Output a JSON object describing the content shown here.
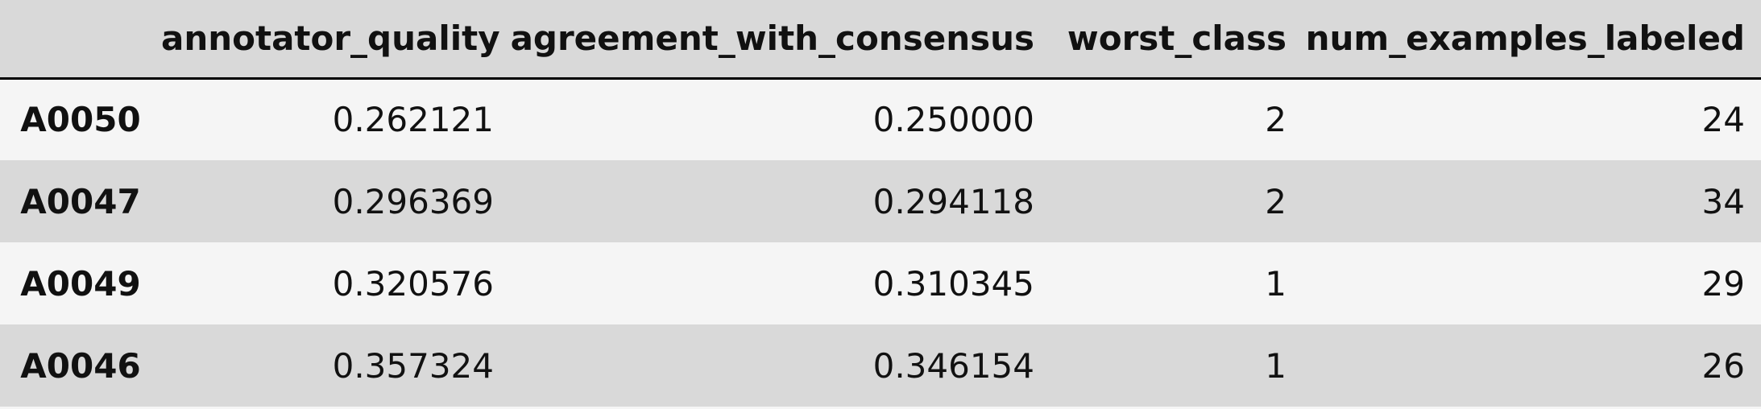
{
  "table": {
    "columns": [
      "annotator_quality",
      "agreement_with_consensus",
      "worst_class",
      "num_examples_labeled"
    ],
    "rows": [
      [
        "A0050",
        "0.262121",
        "0.250000",
        "2",
        "24"
      ],
      [
        "A0047",
        "0.296369",
        "0.294118",
        "2",
        "34"
      ],
      [
        "A0049",
        "0.320576",
        "0.310345",
        "1",
        "29"
      ],
      [
        "A0046",
        "0.357324",
        "0.346154",
        "1",
        "26"
      ]
    ]
  }
}
